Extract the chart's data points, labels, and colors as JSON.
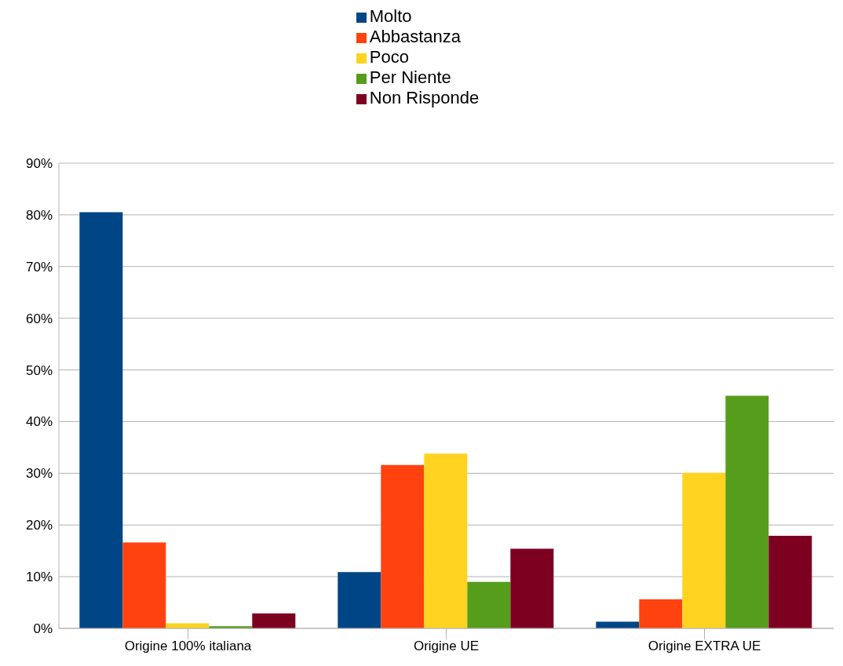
{
  "chart_data": {
    "type": "bar",
    "categories": [
      "Origine 100% italiana",
      "Origine UE",
      "Origine EXTRA UE"
    ],
    "series": [
      {
        "name": "Molto",
        "color": "#004586",
        "values": [
          80.5,
          10.9,
          1.3
        ]
      },
      {
        "name": "Abbastanza",
        "color": "#ff420e",
        "values": [
          16.6,
          31.6,
          5.6
        ]
      },
      {
        "name": "Poco",
        "color": "#ffd320",
        "values": [
          1.0,
          33.8,
          30.1
        ]
      },
      {
        "name": "Per Niente",
        "color": "#579d1c",
        "values": [
          0.4,
          9.0,
          45.0
        ]
      },
      {
        "name": "Non Risponde",
        "color": "#7e0021",
        "values": [
          2.9,
          15.4,
          17.9
        ]
      }
    ],
    "ylim": [
      0,
      90
    ],
    "yticks": [
      {
        "value": 0,
        "label": "0%"
      },
      {
        "value": 10,
        "label": "10%"
      },
      {
        "value": 20,
        "label": "20%"
      },
      {
        "value": 30,
        "label": "30%"
      },
      {
        "value": 40,
        "label": "40%"
      },
      {
        "value": 50,
        "label": "50%"
      },
      {
        "value": 60,
        "label": "60%"
      },
      {
        "value": 70,
        "label": "70%"
      },
      {
        "value": 80,
        "label": "80%"
      },
      {
        "value": 90,
        "label": "90%"
      }
    ],
    "grid": "y",
    "legend": "top"
  }
}
